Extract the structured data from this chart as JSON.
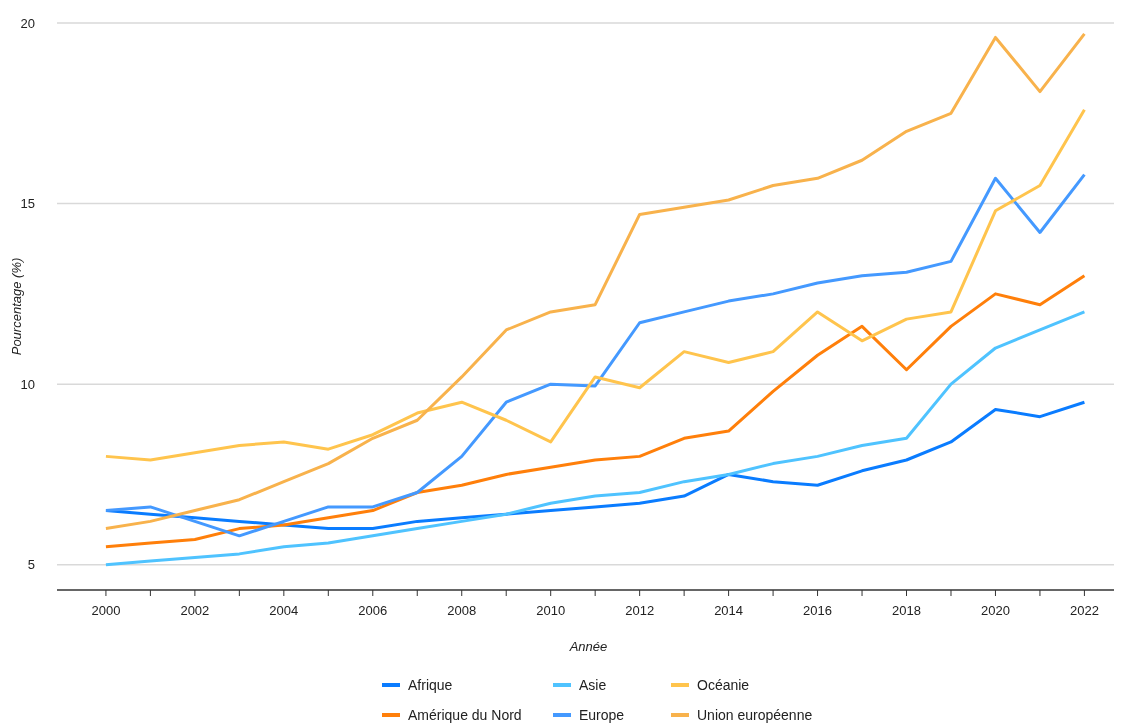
{
  "chart_data": {
    "type": "line",
    "xlabel": "Année",
    "ylabel": "Pourcentage (%)",
    "x": [
      2000,
      2001,
      2002,
      2003,
      2004,
      2005,
      2006,
      2007,
      2008,
      2009,
      2010,
      2011,
      2012,
      2013,
      2014,
      2015,
      2016,
      2017,
      2018,
      2019,
      2020,
      2021,
      2022
    ],
    "series": [
      {
        "name": "Afrique",
        "color": "#0a7cff",
        "values": [
          6.5,
          6.4,
          6.3,
          6.2,
          6.1,
          6.0,
          6.0,
          6.2,
          6.3,
          6.4,
          6.5,
          6.6,
          6.7,
          6.9,
          7.5,
          7.3,
          7.2,
          7.6,
          7.9,
          8.4,
          9.3,
          9.1,
          9.5
        ]
      },
      {
        "name": "Amérique du Nord",
        "color": "#ff7f0a",
        "values": [
          5.5,
          5.6,
          5.7,
          6.0,
          6.1,
          6.3,
          6.5,
          7.0,
          7.2,
          7.5,
          7.7,
          7.9,
          8.0,
          8.5,
          8.7,
          9.8,
          10.8,
          11.6,
          10.4,
          11.6,
          12.5,
          12.2,
          13.0
        ]
      },
      {
        "name": "Asie",
        "color": "#4fc3ff",
        "values": [
          5.0,
          5.1,
          5.2,
          5.3,
          5.5,
          5.6,
          5.8,
          6.0,
          6.2,
          6.4,
          6.7,
          6.9,
          7.0,
          7.3,
          7.5,
          7.8,
          8.0,
          8.3,
          8.5,
          10.0,
          11.0,
          11.5,
          12.0
        ]
      },
      {
        "name": "Europe",
        "color": "#4499ff",
        "values": [
          6.5,
          6.6,
          6.2,
          5.8,
          6.2,
          6.6,
          6.6,
          7.0,
          8.0,
          9.5,
          10.0,
          9.95,
          11.7,
          12.0,
          12.3,
          12.5,
          12.8,
          13.0,
          13.1,
          13.4,
          15.7,
          14.2,
          15.8
        ]
      },
      {
        "name": "Océanie",
        "color": "#ffc44d",
        "values": [
          8.0,
          7.9,
          8.1,
          8.3,
          8.4,
          8.2,
          8.6,
          9.2,
          9.5,
          9.0,
          8.4,
          10.2,
          9.9,
          10.9,
          10.6,
          10.9,
          12.0,
          11.2,
          11.8,
          12.0,
          14.8,
          15.5,
          17.6
        ]
      },
      {
        "name": "Union européenne",
        "color": "#f8b24c",
        "values": [
          6.0,
          6.2,
          6.5,
          6.8,
          7.3,
          7.8,
          8.5,
          9.0,
          10.2,
          11.5,
          12.0,
          12.2,
          14.7,
          14.9,
          15.1,
          15.5,
          15.7,
          16.2,
          17.0,
          17.5,
          19.6,
          18.1,
          19.7
        ]
      }
    ],
    "xlim": [
      1998.9,
      2022.8
    ],
    "xticks": [
      2000,
      {
        "value": 2001,
        "label": null
      },
      2002,
      {
        "value": 2003,
        "label": null
      },
      2004,
      {
        "value": 2005,
        "label": null
      },
      2006,
      {
        "value": 2007,
        "label": null
      },
      2008,
      {
        "value": 2009,
        "label": null
      },
      2010,
      {
        "value": 2011,
        "label": null
      },
      2012,
      {
        "value": 2013,
        "label": null
      },
      2014,
      {
        "value": 2015,
        "label": null
      },
      2016,
      {
        "value": 2017,
        "label": null
      },
      2018,
      {
        "value": 2019,
        "label": null
      },
      2020,
      {
        "value": 2021,
        "label": null
      },
      2022
    ],
    "ylim": [
      4.3,
      20
    ],
    "yticks": [
      5,
      10,
      15,
      20
    ],
    "grid": "y",
    "legend": "bottom",
    "marker": "none",
    "line_style": "solid"
  }
}
